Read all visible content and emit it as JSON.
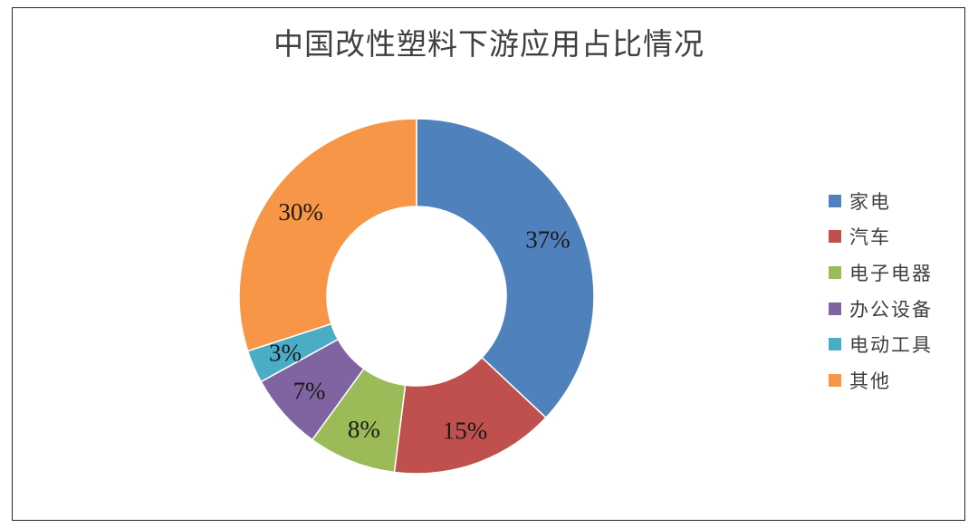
{
  "chart_data": {
    "type": "pie",
    "variant": "donut",
    "title": "中国改性塑料下游应用占比情况",
    "categories": [
      "家电",
      "汽车",
      "电子电器",
      "办公设备",
      "电动工具",
      "其他"
    ],
    "values": [
      37,
      15,
      8,
      7,
      3,
      30
    ],
    "unit": "%",
    "data_labels": [
      "37%",
      "15%",
      "8%",
      "7%",
      "3%",
      "30%"
    ],
    "colors": [
      "#4f81bd",
      "#c0504d",
      "#9bbb59",
      "#8064a2",
      "#4bacc6",
      "#f79646"
    ],
    "legend_position": "right",
    "start_angle": "12 o'clock",
    "direction": "clockwise"
  }
}
